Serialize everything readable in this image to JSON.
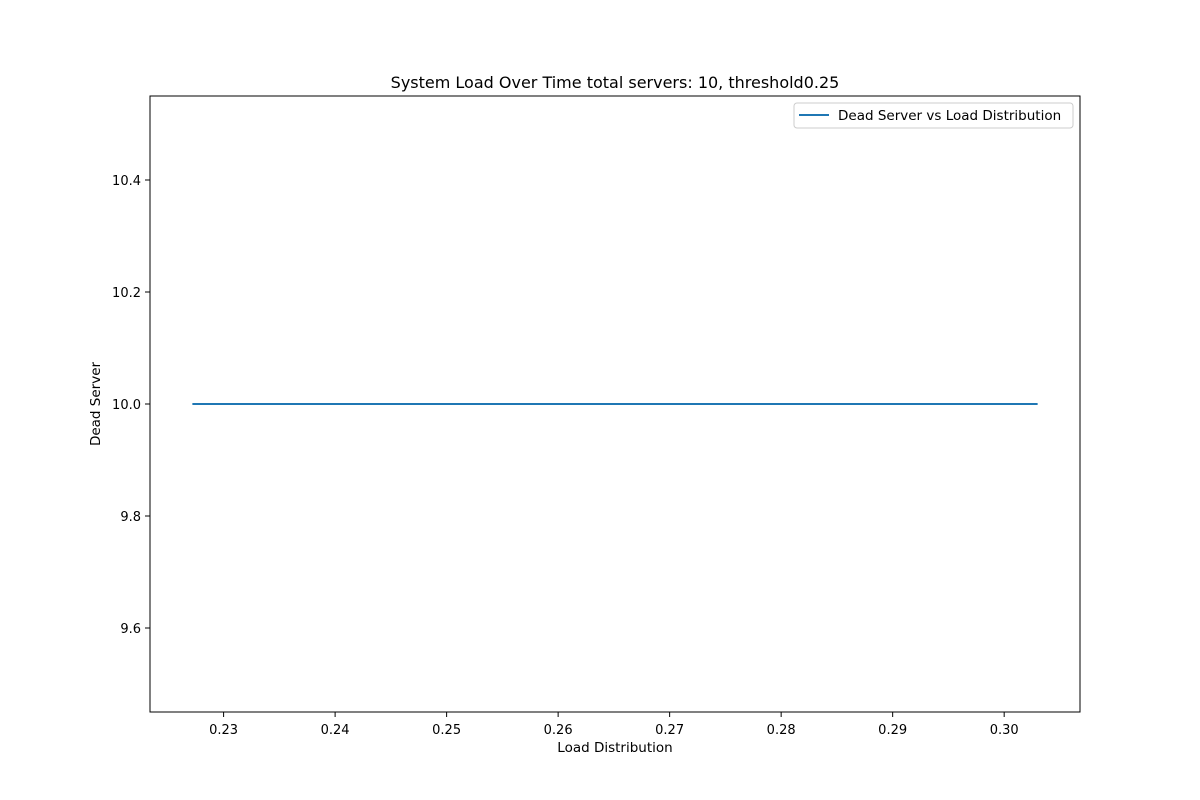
{
  "chart_data": {
    "type": "line",
    "title": "System Load Over Time total servers: 10, threshold0.25",
    "xlabel": "Load Distribution",
    "ylabel": "Dead Server",
    "xlim": [
      0.2234,
      0.3068
    ],
    "ylim": [
      9.45,
      10.55
    ],
    "x_ticks": [
      0.23,
      0.24,
      0.25,
      0.26,
      0.27,
      0.28,
      0.29,
      0.3
    ],
    "x_tick_labels": [
      "0.23",
      "0.24",
      "0.25",
      "0.26",
      "0.27",
      "0.28",
      "0.29",
      "0.30"
    ],
    "y_ticks": [
      9.6,
      9.8,
      10.0,
      10.2,
      10.4
    ],
    "y_tick_labels": [
      "9.6",
      "9.8",
      "10.0",
      "10.2",
      "10.4"
    ],
    "grid": false,
    "legend_position": "upper right",
    "series": [
      {
        "name": "Dead Server vs Load Distribution",
        "color": "#1f77b4",
        "x": [
          0.2272,
          0.303
        ],
        "y": [
          10.0,
          10.0
        ]
      }
    ]
  }
}
